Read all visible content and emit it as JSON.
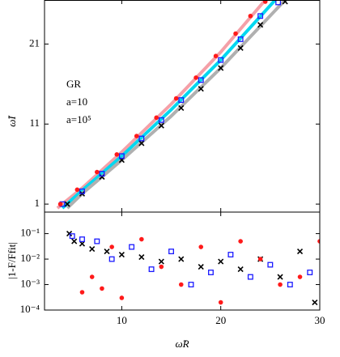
{
  "chart_data": [
    {
      "type": "line",
      "ylabel": "ω̃I",
      "xlim": [
        2.2,
        30
      ],
      "xticks": [
        10,
        20,
        30
      ],
      "ylim": [
        0,
        26.5
      ],
      "yticks": [
        1,
        11,
        21
      ],
      "legend": "upper left",
      "series": [
        {
          "color": "#f4a0a8",
          "style": "line",
          "x": [
            3.5,
            6,
            10,
            15,
            20,
            24.5
          ],
          "y": [
            0.5,
            3,
            7.5,
            13.5,
            20,
            26.5
          ]
        },
        {
          "color": "#00d8f0",
          "style": "line",
          "x": [
            4,
            6,
            10,
            15,
            20,
            25.5
          ],
          "y": [
            0.5,
            2.7,
            7,
            12.8,
            19,
            26.5
          ]
        },
        {
          "color": "#b0b0b0",
          "style": "line",
          "x": [
            4.5,
            6,
            10,
            15,
            20,
            26.5
          ],
          "y": [
            0.5,
            2.3,
            6.5,
            12,
            18,
            26.5
          ]
        },
        {
          "name": "GR",
          "color": "#000000",
          "style": "points",
          "x": [
            4.5,
            6,
            8,
            10,
            12,
            14,
            16,
            18,
            20,
            22,
            24,
            26.5
          ],
          "y": [
            1,
            2.3,
            4.4,
            6.5,
            8.6,
            10.8,
            13,
            15.4,
            18,
            20.5,
            23.4,
            26.3
          ]
        },
        {
          "name": "a=10",
          "color": "#1a1aff",
          "style": "points",
          "x": [
            4,
            6,
            8,
            10,
            12,
            14,
            16,
            18,
            20,
            22,
            24,
            25.8
          ],
          "y": [
            1,
            2.6,
            4.8,
            7,
            9.2,
            11.5,
            14,
            16.5,
            19,
            21.6,
            24.5,
            26.2
          ]
        },
        {
          "name": "a=10⁵",
          "color": "#ff1a1a",
          "style": "points",
          "x": [
            3.8,
            5.5,
            7.5,
            9.5,
            11.5,
            13.5,
            15.5,
            17.5,
            19.5,
            21.5,
            23,
            24.5
          ],
          "y": [
            1,
            2.8,
            5,
            7.2,
            9.5,
            11.8,
            14.2,
            16.8,
            19.5,
            22.3,
            24.5,
            26.3
          ]
        }
      ]
    },
    {
      "type": "scatter",
      "xlabel": "ω̃R",
      "ylabel": "|1-F/Ffit|",
      "xlim": [
        2.2,
        30
      ],
      "xticks": [
        10,
        20,
        30
      ],
      "ylim": [
        0.0001,
        0.7
      ],
      "log_y": true,
      "yticks": [
        {
          "value": 0.1,
          "label": "10⁻¹"
        },
        {
          "value": 0.01,
          "label": "10⁻²"
        },
        {
          "value": 0.001,
          "label": "10⁻³"
        },
        {
          "value": 0.0001,
          "label": "10⁻⁴"
        }
      ],
      "series": [
        {
          "color": "#000000",
          "x": [
            4.7,
            5.2,
            6,
            7,
            8.5,
            10,
            12,
            14,
            16,
            18,
            20,
            22,
            24,
            26,
            28,
            29.5
          ],
          "y": [
            0.1,
            0.05,
            0.04,
            0.025,
            0.02,
            0.015,
            0.012,
            0.008,
            0.01,
            0.005,
            0.008,
            0.004,
            0.01,
            0.002,
            0.02,
            0.0002
          ]
        },
        {
          "color": "#1a1aff",
          "x": [
            5,
            6,
            7.5,
            9,
            11,
            13,
            15,
            17,
            19,
            21,
            23,
            25,
            27,
            29
          ],
          "y": [
            0.08,
            0.06,
            0.05,
            0.01,
            0.03,
            0.004,
            0.02,
            0.001,
            0.003,
            0.015,
            0.002,
            0.006,
            0.001,
            0.003
          ]
        },
        {
          "color": "#ff1a1a",
          "x": [
            6,
            7,
            8,
            9,
            10,
            12,
            14,
            16,
            18,
            20,
            22,
            24,
            26,
            28,
            30
          ],
          "y": [
            0.0005,
            0.002,
            0.0007,
            0.03,
            0.0003,
            0.06,
            0.005,
            0.001,
            0.03,
            0.0002,
            0.05,
            0.01,
            0.001,
            0.002,
            0.05
          ]
        }
      ]
    }
  ]
}
